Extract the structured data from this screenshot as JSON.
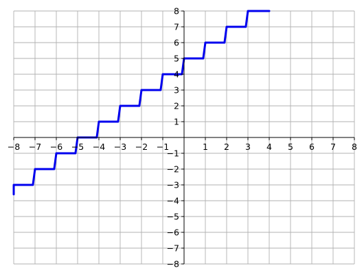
{
  "chart_data": {
    "type": "line",
    "title": "",
    "xlabel": "",
    "ylabel": "",
    "xlim": [
      -8,
      8
    ],
    "ylim": [
      -8,
      8
    ],
    "grid": true,
    "spines": "centered",
    "x_ticks": [
      "−8",
      "−7",
      "−6",
      "−5",
      "−4",
      "−3",
      "−2",
      "−1",
      "1",
      "2",
      "3",
      "4",
      "5",
      "6",
      "7",
      "8"
    ],
    "x_tick_values": [
      -8,
      -7,
      -6,
      -5,
      -4,
      -3,
      -2,
      -1,
      1,
      2,
      3,
      4,
      5,
      6,
      7,
      8
    ],
    "y_ticks": [
      "−8",
      "−7",
      "−6",
      "−5",
      "−4",
      "−3",
      "−2",
      "−1",
      "1",
      "2",
      "3",
      "4",
      "5",
      "6",
      "7",
      "8"
    ],
    "y_tick_values": [
      -8,
      -7,
      -6,
      -5,
      -4,
      -3,
      -2,
      -1,
      1,
      2,
      3,
      4,
      5,
      6,
      7,
      8
    ],
    "series": [
      {
        "color": "#0000ee",
        "x": [
          -8,
          -8,
          -7.1,
          -7,
          -6.1,
          -6,
          -5.1,
          -5,
          -4.1,
          -4,
          -3.1,
          -3,
          -2.1,
          -2,
          -1.1,
          -1,
          -0.1,
          0,
          0.9,
          1,
          1.9,
          2,
          2.9,
          3,
          4
        ],
        "y": [
          -3.6,
          -3,
          -3,
          -2,
          -2,
          -1,
          -1,
          0,
          0,
          1,
          1,
          2,
          2,
          3,
          3,
          4,
          4,
          5,
          5,
          6,
          6,
          7,
          7,
          8,
          8
        ]
      }
    ]
  }
}
